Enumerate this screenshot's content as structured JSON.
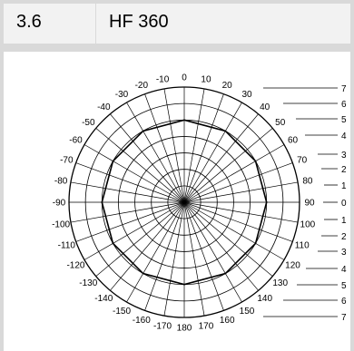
{
  "header": {
    "section_number": "3.6",
    "title": "HF 360"
  },
  "diagram": {
    "angle_labels": [
      {
        "angle": 0,
        "text": "0"
      },
      {
        "angle": 10,
        "text": "10"
      },
      {
        "angle": 20,
        "text": "20"
      },
      {
        "angle": 30,
        "text": "30"
      },
      {
        "angle": 40,
        "text": "40"
      },
      {
        "angle": 50,
        "text": "50"
      },
      {
        "angle": 60,
        "text": "60"
      },
      {
        "angle": 70,
        "text": "70"
      },
      {
        "angle": 80,
        "text": "80"
      },
      {
        "angle": 90,
        "text": "90"
      },
      {
        "angle": 100,
        "text": "100"
      },
      {
        "angle": 110,
        "text": "110"
      },
      {
        "angle": 120,
        "text": "120"
      },
      {
        "angle": 130,
        "text": "130"
      },
      {
        "angle": 140,
        "text": "140"
      },
      {
        "angle": 150,
        "text": "150"
      },
      {
        "angle": 160,
        "text": "160"
      },
      {
        "angle": 170,
        "text": "170"
      },
      {
        "angle": 180,
        "text": "180"
      },
      {
        "angle": -170,
        "text": "-170"
      },
      {
        "angle": -160,
        "text": "-160"
      },
      {
        "angle": -150,
        "text": "-150"
      },
      {
        "angle": -140,
        "text": "-140"
      },
      {
        "angle": -130,
        "text": "-130"
      },
      {
        "angle": -120,
        "text": "-120"
      },
      {
        "angle": -110,
        "text": "-110"
      },
      {
        "angle": -100,
        "text": "-100"
      },
      {
        "angle": -90,
        "text": "-90"
      },
      {
        "angle": -80,
        "text": "-80"
      },
      {
        "angle": -70,
        "text": "-70"
      },
      {
        "angle": -60,
        "text": "-60"
      },
      {
        "angle": -50,
        "text": "-50"
      },
      {
        "angle": -40,
        "text": "-40"
      },
      {
        "angle": -30,
        "text": "-30"
      },
      {
        "angle": -20,
        "text": "-20"
      },
      {
        "angle": -10,
        "text": "-10"
      }
    ],
    "ring_scale": [
      "7",
      "6",
      "5",
      "4",
      "3",
      "2",
      "1",
      "0",
      "1",
      "2",
      "3",
      "4",
      "5",
      "6",
      "7"
    ],
    "ring_count": 7,
    "pattern_level": 5
  }
}
